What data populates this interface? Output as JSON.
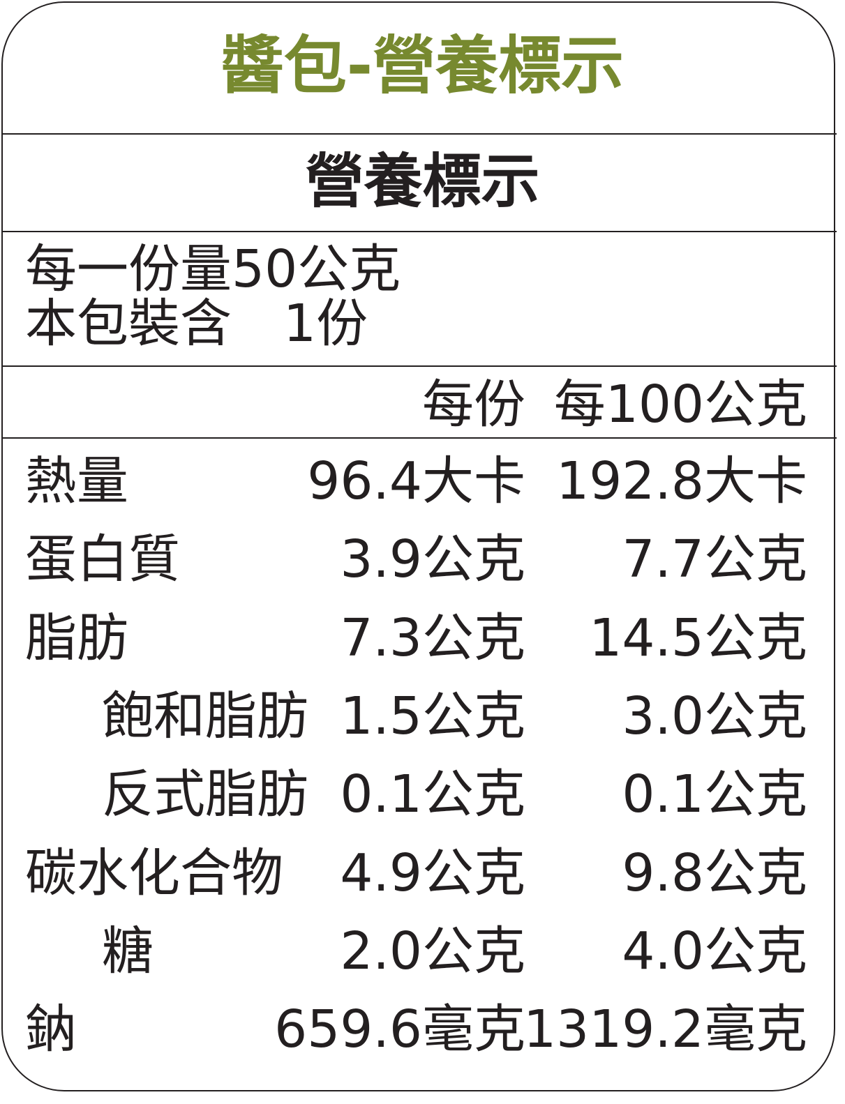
{
  "title": "醬包-營養標示",
  "subtitle": "營養標示",
  "serving": {
    "size": "每一份量50公克",
    "count": "本包裝含　1份"
  },
  "columns": {
    "per_serving": "每份",
    "per_100g": "每100公克"
  },
  "colors": {
    "title": "#77892f",
    "text": "#231f20"
  },
  "rows": [
    {
      "label": "熱量",
      "per_serving": "96.4大卡",
      "per_100g": "192.8大卡",
      "indent": false
    },
    {
      "label": "蛋白質",
      "per_serving": "3.9公克",
      "per_100g": "7.7公克",
      "indent": false
    },
    {
      "label": "脂肪",
      "per_serving": "7.3公克",
      "per_100g": "14.5公克",
      "indent": false
    },
    {
      "label": "飽和脂肪",
      "per_serving": "1.5公克",
      "per_100g": "3.0公克",
      "indent": true
    },
    {
      "label": "反式脂肪",
      "per_serving": "0.1公克",
      "per_100g": "0.1公克",
      "indent": true
    },
    {
      "label": "碳水化合物",
      "per_serving": "4.9公克",
      "per_100g": "9.8公克",
      "indent": false
    },
    {
      "label": "糖",
      "per_serving": "2.0公克",
      "per_100g": "4.0公克",
      "indent": true
    },
    {
      "label": "鈉",
      "per_serving": "659.6毫克",
      "per_100g": "1319.2毫克",
      "indent": false
    }
  ]
}
